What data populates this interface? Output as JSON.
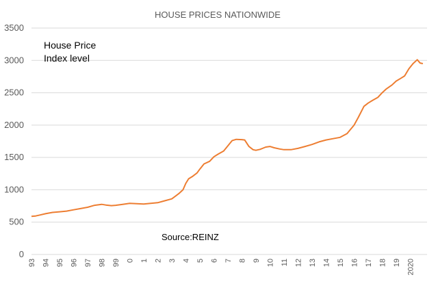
{
  "chart_data": {
    "type": "line",
    "title": "HOUSE PRICES NATIONWIDE",
    "annotation_lines": [
      "House Price",
      "Index level"
    ],
    "source": "Source:REINZ",
    "y_ticks": [
      0,
      500,
      1000,
      1500,
      2000,
      2500,
      3000,
      3500
    ],
    "ylim": [
      0,
      3500
    ],
    "xlim": [
      1993.0,
      2021.2
    ],
    "x_ticks": [
      {
        "year": 1993,
        "label": "93"
      },
      {
        "year": 1994,
        "label": "94"
      },
      {
        "year": 1995,
        "label": "95"
      },
      {
        "year": 1996,
        "label": "96"
      },
      {
        "year": 1997,
        "label": "97"
      },
      {
        "year": 1998,
        "label": "98"
      },
      {
        "year": 1999,
        "label": "99"
      },
      {
        "year": 2000,
        "label": "0"
      },
      {
        "year": 2001,
        "label": "1"
      },
      {
        "year": 2002,
        "label": "2"
      },
      {
        "year": 2003,
        "label": "3"
      },
      {
        "year": 2004,
        "label": "4"
      },
      {
        "year": 2005,
        "label": "5"
      },
      {
        "year": 2006,
        "label": "6"
      },
      {
        "year": 2007,
        "label": "7"
      },
      {
        "year": 2008,
        "label": "8"
      },
      {
        "year": 2009,
        "label": "9"
      },
      {
        "year": 2010,
        "label": "10"
      },
      {
        "year": 2011,
        "label": "11"
      },
      {
        "year": 2012,
        "label": "12"
      },
      {
        "year": 2013,
        "label": "13"
      },
      {
        "year": 2014,
        "label": "14"
      },
      {
        "year": 2015,
        "label": "15"
      },
      {
        "year": 2016,
        "label": "16"
      },
      {
        "year": 2017,
        "label": "17"
      },
      {
        "year": 2018,
        "label": "18"
      },
      {
        "year": 2019,
        "label": "19"
      },
      {
        "year": 2020,
        "label": "2020"
      }
    ],
    "grid": "horizontal",
    "line_color": "#ED7D31",
    "series": [
      {
        "x": [
          1993.0,
          1993.3,
          1993.6,
          1994.0,
          1994.5,
          1995.0,
          1995.5,
          1996.0,
          1996.5,
          1997.0,
          1997.5,
          1998.0,
          1998.3,
          1998.7,
          1999.0,
          1999.5,
          2000.0,
          2000.5,
          2001.0,
          2001.5,
          2002.0,
          2002.5,
          2003.0,
          2003.5,
          2003.8,
          2004.0,
          2004.2,
          2004.5,
          2004.8,
          2005.0,
          2005.3,
          2005.7,
          2006.0,
          2006.3,
          2006.7,
          2007.0,
          2007.3,
          2007.6,
          2008.0,
          2008.2,
          2008.5,
          2008.8,
          2009.0,
          2009.3,
          2009.7,
          2010.0,
          2010.3,
          2010.7,
          2011.0,
          2011.5,
          2012.0,
          2012.5,
          2013.0,
          2013.5,
          2014.0,
          2014.5,
          2015.0,
          2015.5,
          2016.0,
          2016.3,
          2016.7,
          2017.0,
          2017.3,
          2017.7,
          2018.0,
          2018.3,
          2018.7,
          2019.0,
          2019.3,
          2019.6,
          2019.9,
          2020.2,
          2020.5,
          2020.7,
          2020.9
        ],
        "y": [
          590,
          595,
          610,
          630,
          650,
          660,
          670,
          690,
          710,
          730,
          760,
          775,
          765,
          755,
          760,
          775,
          790,
          785,
          780,
          790,
          800,
          830,
          860,
          940,
          1000,
          1100,
          1170,
          1210,
          1260,
          1320,
          1400,
          1440,
          1510,
          1550,
          1600,
          1680,
          1760,
          1780,
          1775,
          1770,
          1670,
          1620,
          1610,
          1625,
          1660,
          1670,
          1650,
          1630,
          1620,
          1620,
          1640,
          1670,
          1700,
          1740,
          1770,
          1790,
          1810,
          1870,
          2000,
          2120,
          2290,
          2340,
          2380,
          2430,
          2500,
          2560,
          2620,
          2680,
          2720,
          2760,
          2870,
          2950,
          3010,
          2960,
          2950
        ]
      }
    ]
  }
}
